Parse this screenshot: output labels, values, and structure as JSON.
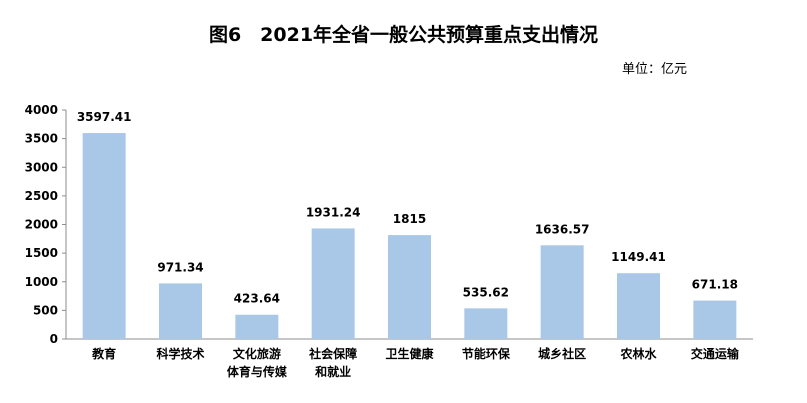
{
  "chart_data": {
    "type": "bar",
    "title": "图6　2021年全省一般公共预算重点支出情况",
    "unit_label": "单位：亿元",
    "categories": [
      [
        "教育"
      ],
      [
        "科学技术"
      ],
      [
        "文化旅游",
        "体育与传媒"
      ],
      [
        "社会保障",
        "和就业"
      ],
      [
        "卫生健康"
      ],
      [
        "节能环保"
      ],
      [
        "城乡社区"
      ],
      [
        "农林水"
      ],
      [
        "交通运输"
      ]
    ],
    "values": [
      3597.41,
      971.34,
      423.64,
      1931.24,
      1815,
      535.62,
      1636.57,
      1149.41,
      671.18
    ],
    "value_labels": [
      "3597.41",
      "971.34",
      "423.64",
      "1931.24",
      "1815",
      "535.62",
      "1636.57",
      "1149.41",
      "671.18"
    ],
    "yticks": [
      "0",
      "500",
      "1000",
      "1500",
      "2000",
      "2500",
      "3000",
      "3500",
      "4000"
    ],
    "ylim": [
      0,
      4000
    ],
    "grid": false,
    "bar_color": "#a9c8e8"
  }
}
